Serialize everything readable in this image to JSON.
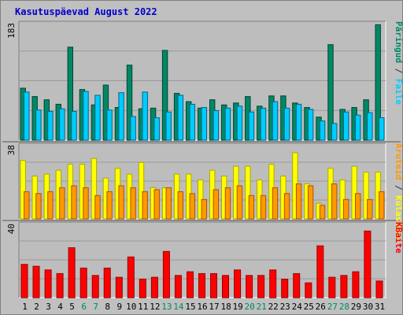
{
  "colors": {
    "background": "#c0c0c0",
    "plot_background": "#bdbdbd",
    "gridline": "#9a9a9a",
    "weekday": "#000000",
    "weekend": "#008866",
    "title": "#0000cc",
    "separator": "#555555",
    "pageviews": "#ffff00",
    "visits": "#ff9900",
    "pageviews_edge": "#aaaa00",
    "visits_edge": "#aa5500",
    "kbytes": "#ff0000",
    "kbytes_edge": "#990000"
  },
  "chart_data": {
    "type": "bar",
    "title": "Kasutuspäevad August 2022",
    "categories": [
      "1",
      "2",
      "3",
      "4",
      "5",
      "6",
      "7",
      "8",
      "9",
      "10",
      "11",
      "12",
      "13",
      "14",
      "15",
      "16",
      "17",
      "18",
      "19",
      "20",
      "21",
      "22",
      "23",
      "24",
      "25",
      "26",
      "27",
      "28",
      "29",
      "30",
      "31"
    ],
    "weekend_days": [
      "6",
      "7",
      "13",
      "14",
      "20",
      "21",
      "27",
      "28"
    ],
    "panels": [
      {
        "ymax_label": "183",
        "ylim": [
          0,
          183
        ],
        "series": [
          {
            "name": "Päringud",
            "color": "#008866",
            "edge": "#004433",
            "values": [
              81,
              68,
              63,
              56,
              145,
              79,
              55,
              86,
              51,
              117,
              49,
              50,
              140,
              73,
              60,
              50,
              63,
              55,
              58,
              68,
              53,
              69,
              69,
              58,
              51,
              36,
              149,
              48,
              51,
              63,
              180
            ]
          },
          {
            "name": "Faile",
            "color": "#00ccff",
            "edge": "#006688",
            "values": [
              75,
              47,
              45,
              49,
              45,
              76,
              70,
              47,
              74,
              37,
              75,
              35,
              44,
              70,
              56,
              51,
              46,
              50,
              53,
              44,
              50,
              60,
              50,
              56,
              48,
              30,
              26,
              44,
              39,
              43,
              35
            ]
          }
        ],
        "legend": [
          {
            "name": "Päringud",
            "color": "#008866"
          },
          {
            "name": "Faile",
            "color": "#00ccff"
          }
        ]
      },
      {
        "ymax_label": "38",
        "ylim": [
          0,
          38
        ],
        "series": [
          {
            "name": "Külastusi",
            "color": "#ffff00",
            "values": [
              30,
              22,
              23,
              25,
              28,
              28,
              31,
              21,
              26,
              23,
              29,
              16,
              16,
              23,
              23,
              20,
              25,
              22,
              27,
              27,
              20,
              28,
              22,
              34,
              18,
              8,
              26,
              20,
              27,
              24,
              24
            ]
          },
          {
            "name": "Aruteid",
            "color": "#ff9900",
            "values": [
              14,
              13,
              14,
              16,
              17,
              16,
              12,
              14,
              17,
              16,
              14,
              15,
              16,
              14,
              13,
              10,
              15,
              16,
              17,
              12,
              12,
              16,
              13,
              18,
              17,
              7,
              18,
              10,
              13,
              10,
              14
            ]
          }
        ],
        "legend": [
          {
            "name": "Aruteid",
            "color": "#ff9900"
          },
          {
            "name": "Külastusi",
            "color": "#ffff00"
          }
        ]
      },
      {
        "ymax_label": "40",
        "ylim": [
          0,
          40
        ],
        "series": [
          {
            "name": "KBaite",
            "color": "#ff0000",
            "values": [
              18,
              17,
              15,
              13,
              27,
              16,
              12,
              16,
              11,
              22,
              10,
              11,
              25,
              12,
              14,
              13,
              13,
              12,
              15,
              12,
              12,
              15,
              10,
              13,
              8,
              28,
              11,
              12,
              14,
              36,
              9
            ]
          }
        ],
        "legend": [
          {
            "name": "KBaite",
            "color": "#ff0000"
          }
        ]
      }
    ]
  }
}
